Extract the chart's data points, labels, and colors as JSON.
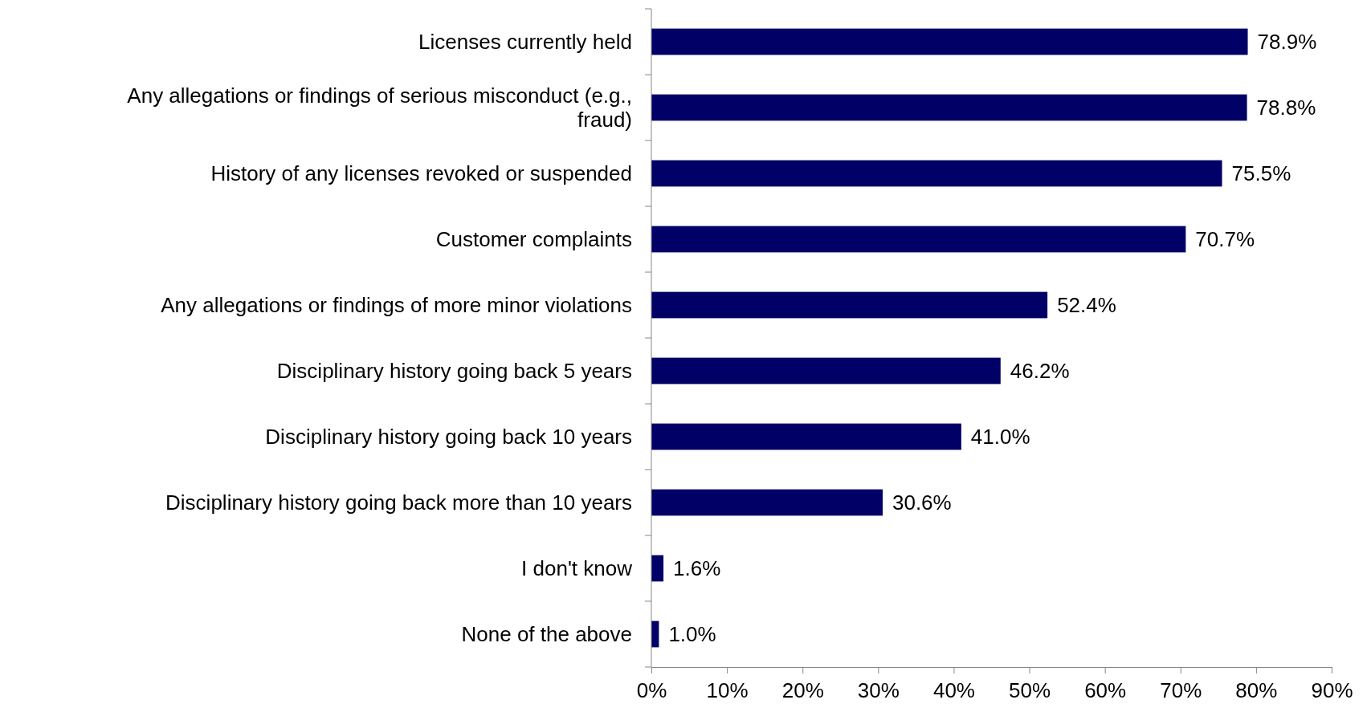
{
  "chart_data": {
    "type": "bar",
    "orientation": "horizontal",
    "categories": [
      "Licenses currently held",
      "Any allegations or findings of serious misconduct (e.g., fraud)",
      "History of any licenses revoked or suspended",
      "Customer complaints",
      "Any allegations or findings of more minor violations",
      "Disciplinary history going back 5 years",
      "Disciplinary history going back 10 years",
      "Disciplinary history going back more than 10 years",
      "I don't know",
      "None of the above"
    ],
    "values": [
      78.9,
      78.8,
      75.5,
      70.7,
      52.4,
      46.2,
      41.0,
      30.6,
      1.6,
      1.0
    ],
    "value_labels": [
      "78.9%",
      "78.8%",
      "75.5%",
      "70.7%",
      "52.4%",
      "46.2%",
      "41.0%",
      "30.6%",
      "1.6%",
      "1.0%"
    ],
    "color": "#000066",
    "xlim": [
      0,
      90
    ],
    "xticks": [
      {
        "value": 0,
        "label": "0%"
      },
      {
        "value": 10,
        "label": "10%"
      },
      {
        "value": 20,
        "label": "20%"
      },
      {
        "value": 30,
        "label": "30%"
      },
      {
        "value": 40,
        "label": "40%"
      },
      {
        "value": 50,
        "label": "50%"
      },
      {
        "value": 60,
        "label": "60%"
      },
      {
        "value": 70,
        "label": "70%"
      },
      {
        "value": 80,
        "label": "80%"
      },
      {
        "value": 90,
        "label": "90%"
      }
    ],
    "grid": false
  }
}
